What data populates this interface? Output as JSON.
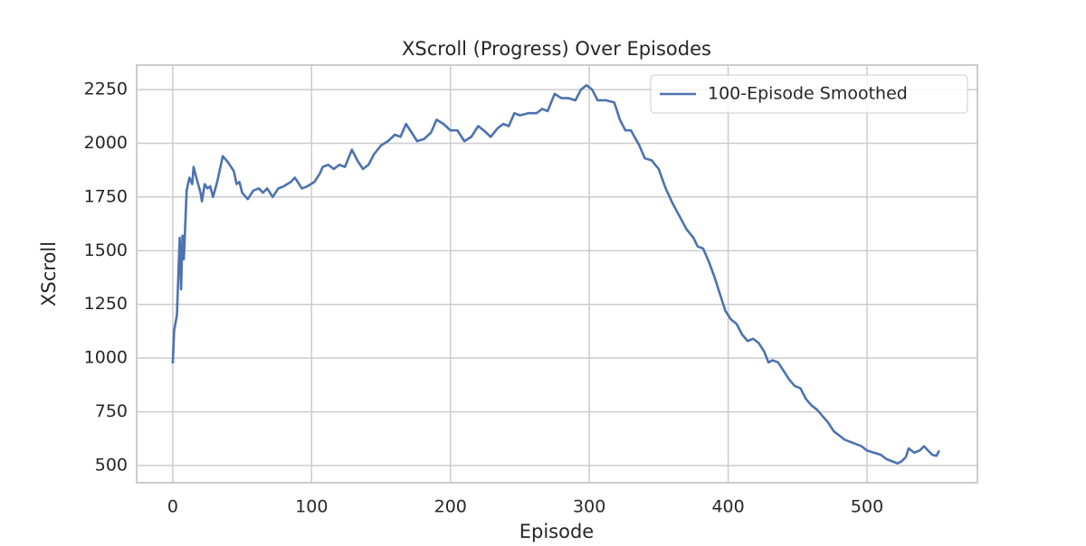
{
  "chart_data": {
    "type": "line",
    "title": "XScroll (Progress) Over Episodes",
    "x_label": "Episode",
    "y_label": "XScroll",
    "x": [
      0,
      1,
      3,
      5,
      6,
      7,
      8,
      10,
      12,
      14,
      15,
      17,
      20,
      21,
      23,
      25,
      27,
      29,
      32,
      36,
      40,
      44,
      46,
      48,
      50,
      54,
      58,
      62,
      65,
      68,
      72,
      76,
      80,
      85,
      88,
      93,
      97,
      102,
      106,
      108,
      112,
      116,
      120,
      124,
      129,
      133,
      137,
      141,
      145,
      150,
      155,
      160,
      164,
      168,
      172,
      176,
      181,
      186,
      190,
      195,
      200,
      205,
      210,
      215,
      220,
      224,
      229,
      234,
      238,
      242,
      246,
      250,
      256,
      262,
      266,
      270,
      275,
      280,
      285,
      290,
      294,
      298,
      302,
      306,
      312,
      318,
      322,
      326,
      330,
      336,
      340,
      345,
      350,
      355,
      360,
      365,
      370,
      375,
      378,
      382,
      386,
      390,
      394,
      398,
      402,
      406,
      410,
      414,
      418,
      422,
      426,
      429,
      432,
      436,
      440,
      444,
      448,
      452,
      456,
      460,
      464,
      468,
      472,
      476,
      480,
      484,
      488,
      492,
      496,
      500,
      505,
      510,
      514,
      518,
      522,
      525,
      528,
      530,
      534,
      538,
      541,
      544,
      547,
      550,
      552
    ],
    "series": [
      {
        "name": "100-Episode Smoothed",
        "color": "#4c72b0",
        "values": [
          975,
          1130,
          1200,
          1560,
          1320,
          1570,
          1460,
          1780,
          1840,
          1810,
          1890,
          1840,
          1770,
          1730,
          1810,
          1790,
          1800,
          1750,
          1820,
          1940,
          1910,
          1870,
          1810,
          1820,
          1770,
          1740,
          1780,
          1790,
          1770,
          1790,
          1750,
          1790,
          1800,
          1820,
          1840,
          1790,
          1800,
          1820,
          1860,
          1890,
          1900,
          1880,
          1900,
          1890,
          1970,
          1920,
          1880,
          1900,
          1950,
          1990,
          2010,
          2040,
          2030,
          2090,
          2050,
          2010,
          2020,
          2050,
          2110,
          2090,
          2060,
          2060,
          2010,
          2030,
          2080,
          2060,
          2030,
          2070,
          2090,
          2080,
          2140,
          2130,
          2140,
          2140,
          2160,
          2150,
          2230,
          2210,
          2210,
          2200,
          2250,
          2270,
          2250,
          2200,
          2200,
          2190,
          2110,
          2060,
          2060,
          1990,
          1930,
          1920,
          1880,
          1790,
          1720,
          1660,
          1600,
          1560,
          1520,
          1510,
          1450,
          1380,
          1300,
          1220,
          1180,
          1160,
          1110,
          1080,
          1090,
          1070,
          1030,
          980,
          990,
          980,
          940,
          900,
          870,
          860,
          810,
          780,
          760,
          730,
          700,
          660,
          640,
          620,
          610,
          600,
          590,
          570,
          560,
          550,
          530,
          520,
          510,
          520,
          540,
          580,
          560,
          570,
          590,
          570,
          550,
          545,
          570
        ]
      }
    ],
    "xlim": [
      -26,
      579.5
    ],
    "ylim": [
      420,
      2364
    ],
    "xticks": [
      0,
      100,
      200,
      300,
      400,
      500
    ],
    "yticks": [
      500,
      750,
      1000,
      1250,
      1500,
      1750,
      2000,
      2250
    ],
    "grid": true,
    "legend": "upper right"
  }
}
